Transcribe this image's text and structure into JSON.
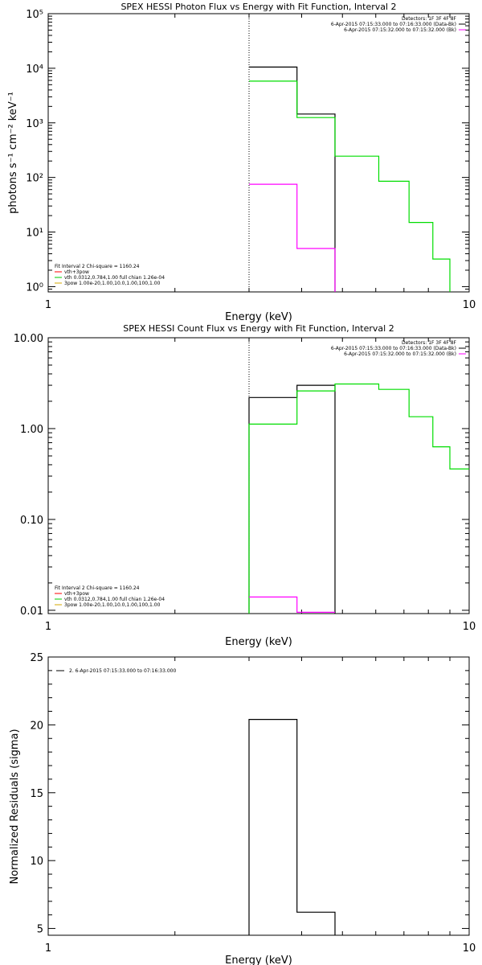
{
  "chart_data": [
    {
      "type": "line",
      "title": "SPEX HESSI Photon Flux vs Energy with Fit Function, Interval 2",
      "xlabel": "Energy (keV)",
      "ylabel": "photons s⁻¹ cm⁻² keV⁻¹",
      "xscale": "log",
      "yscale": "log",
      "xlim": [
        1,
        10
      ],
      "ylim": [
        0.8,
        100000
      ],
      "x_ticks": [
        "1",
        "10"
      ],
      "y_ticks": [
        "10⁰",
        "10¹",
        "10²",
        "10³",
        "10⁴",
        "10⁵"
      ],
      "y_tick_values": [
        1,
        10,
        100,
        1000,
        10000,
        100000
      ],
      "dotted_line_x": 3.0,
      "header": [
        "Detectors: 1F 3F 4F 8F",
        "6-Apr-2015 07:15:33.000 to 07:16:33.000 (Data-Bk)",
        "6-Apr-2015 07:15:32.000 to 07:15:32.000 (Bk)"
      ],
      "header_colors": [
        "#000000",
        "#000000",
        "#ff00ff"
      ],
      "fit_info": [
        "Fit Interval 2   Chi-square = 1160.24",
        "vth+3pow",
        "vth 0.0312,0.784,1.00  full chian 1.26e-04",
        "3pow 1.00e-20,1.00,10.0,1.00,100,1.00"
      ],
      "fit_colors": [
        "#000000",
        "#ff0000",
        "#00cc00",
        "#d4aa00"
      ],
      "series": [
        {
          "color": "#000000",
          "x": [
            3.0,
            3.9,
            3.9,
            4.8,
            4.8
          ],
          "y": [
            10500,
            10500,
            1450,
            1450,
            0.8
          ]
        },
        {
          "color": "#00dd00",
          "x": [
            3.0,
            3.9,
            3.9,
            4.8,
            4.8,
            6.1,
            6.1,
            7.2,
            7.2,
            8.2,
            8.2,
            9.0,
            9.0
          ],
          "y": [
            5800,
            5800,
            1250,
            1250,
            245,
            245,
            85,
            85,
            15,
            15,
            3.2,
            3.2,
            0.8
          ]
        },
        {
          "color": "#ff00ff",
          "x": [
            3.0,
            3.9,
            3.9,
            4.8,
            4.8
          ],
          "y": [
            75,
            75,
            5,
            5,
            0.8
          ]
        }
      ]
    },
    {
      "type": "line",
      "title": "SPEX HESSI Count Flux vs Energy with Fit Function, Interval 2",
      "xlabel": "Energy (keV)",
      "ylabel": "",
      "xscale": "log",
      "yscale": "log",
      "xlim": [
        1,
        10
      ],
      "ylim": [
        0.0092,
        10
      ],
      "x_ticks": [
        "1",
        "10"
      ],
      "y_ticks": [
        "0.01",
        "0.10",
        "1.00",
        "10.00"
      ],
      "y_tick_values": [
        0.01,
        0.1,
        1,
        10
      ],
      "dotted_line_x": 3.0,
      "header": [
        "Detectors: 1F 3F 4F 8F",
        "6-Apr-2015 07:15:33.000 to 07:16:33.000 (Data-Bk)",
        "6-Apr-2015 07:15:32.000 to 07:15:32.000 (Bk)"
      ],
      "header_colors": [
        "#000000",
        "#000000",
        "#ff00ff"
      ],
      "fit_info": [
        "Fit Interval 2   Chi-square = 1160.24",
        "vth+3pow",
        "vth 0.0312,0.784,1.00  full chian 1.26e-04",
        "3pow 1.00e-20,1.00,10.0,1.00,100,1.00"
      ],
      "fit_colors": [
        "#000000",
        "#ff0000",
        "#00cc00",
        "#d4aa00"
      ],
      "series": [
        {
          "color": "#000000",
          "x": [
            3.0,
            3.0,
            3.9,
            3.9,
            4.8,
            4.8
          ],
          "y": [
            0.0092,
            2.2,
            2.2,
            3.0,
            3.0,
            0.0092
          ]
        },
        {
          "color": "#00dd00",
          "x": [
            3.0,
            3.0,
            3.9,
            3.9,
            4.8,
            4.8,
            6.1,
            6.1,
            7.2,
            7.2,
            8.2,
            8.2,
            9.0,
            9.0,
            10.0
          ],
          "y": [
            0.0092,
            1.12,
            1.12,
            2.6,
            2.6,
            3.1,
            3.1,
            2.7,
            2.7,
            1.35,
            1.35,
            0.63,
            0.63,
            0.36,
            0.36
          ]
        },
        {
          "color": "#ff00ff",
          "x": [
            3.0,
            3.9,
            3.9,
            4.8
          ],
          "y": [
            0.014,
            0.014,
            0.0095,
            0.0095
          ]
        }
      ]
    },
    {
      "type": "line",
      "title": "",
      "xlabel": "Energy (keV)",
      "ylabel": "Normalized Residuals (sigma)",
      "xscale": "log",
      "yscale": "linear",
      "xlim": [
        1,
        10
      ],
      "ylim": [
        4.5,
        25
      ],
      "x_ticks": [
        "1",
        "10"
      ],
      "y_ticks": [
        "5",
        "10",
        "15",
        "20",
        "25"
      ],
      "y_tick_values": [
        5,
        10,
        15,
        20,
        25
      ],
      "legend": [
        "2.  6-Apr-2015 07:15:33.000 to 07:16:33.000"
      ],
      "series": [
        {
          "color": "#000000",
          "x": [
            3.0,
            3.0,
            3.9,
            3.9,
            4.8,
            4.8
          ],
          "y": [
            4.5,
            20.4,
            20.4,
            6.2,
            6.2,
            4.5
          ]
        }
      ]
    }
  ]
}
